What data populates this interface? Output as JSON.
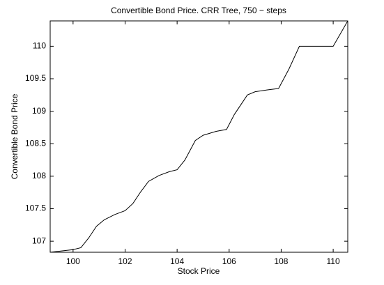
{
  "chart_data": {
    "type": "line",
    "title": "Convertible Bond Price. CRR Tree, 750 − steps",
    "x_label": "Stock Price",
    "y_label": "Convertible Bond Price",
    "xlim": [
      99.12,
      110.56
    ],
    "ylim": [
      106.83,
      110.39
    ],
    "xticks": [
      100,
      102,
      104,
      106,
      108,
      110
    ],
    "yticks": [
      107,
      107.5,
      108,
      108.5,
      109,
      109.5,
      110
    ],
    "grid": false,
    "series": [
      {
        "color": "#000000",
        "x": [
          99.12,
          100,
          100.3,
          100.6,
          100.9,
          101.2,
          101.6,
          102.0,
          102.3,
          102.6,
          102.9,
          103.3,
          103.7,
          104.0,
          104.3,
          104.7,
          105.0,
          105.5,
          105.9,
          106.2,
          106.7,
          107.0,
          107.5,
          107.9,
          108.3,
          108.7,
          109.0,
          110.0,
          110.56
        ],
        "values": [
          106.83,
          106.87,
          106.9,
          107.05,
          107.23,
          107.33,
          107.41,
          107.47,
          107.58,
          107.76,
          107.92,
          108.01,
          108.07,
          108.1,
          108.25,
          108.55,
          108.63,
          108.69,
          108.72,
          108.95,
          109.25,
          109.3,
          109.33,
          109.35,
          109.65,
          110.0,
          110.0,
          110.0,
          110.39
        ]
      }
    ]
  }
}
